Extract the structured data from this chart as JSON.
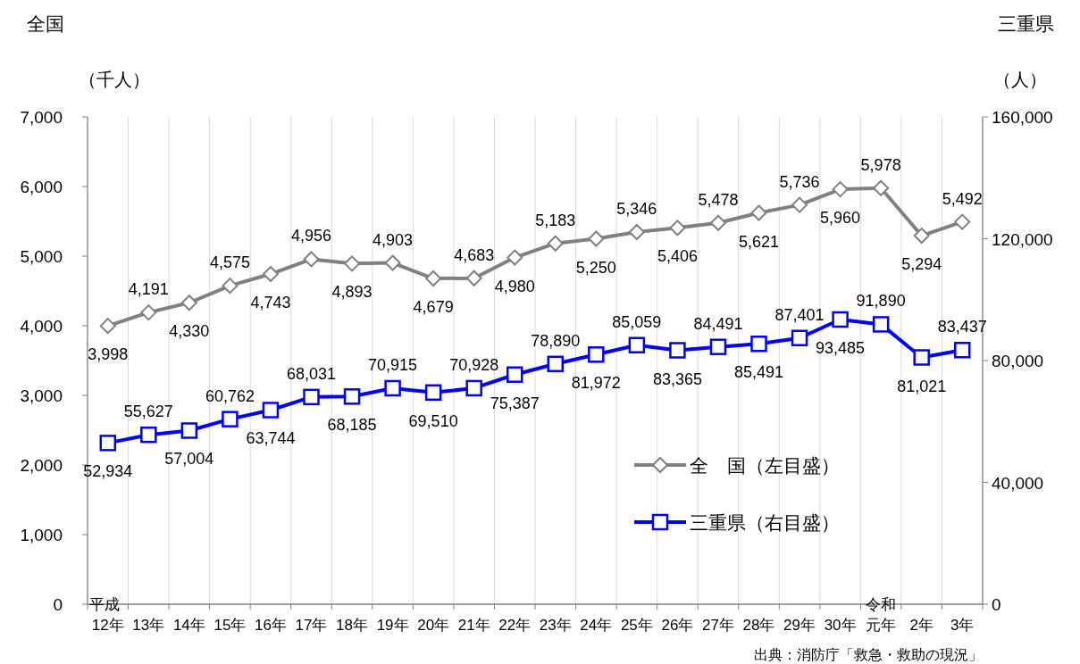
{
  "chart_data": {
    "type": "line",
    "ylabel": "全国",
    "y2label": "三重県",
    "categories": [
      "12年",
      "13年",
      "14年",
      "15年",
      "16年",
      "17年",
      "18年",
      "19年",
      "20年",
      "21年",
      "22年",
      "23年",
      "24年",
      "25年",
      "26年",
      "27年",
      "28年",
      "29年",
      "30年",
      "元年",
      "2年",
      "3年"
    ],
    "series": [
      {
        "name": "全　国（左目盛）",
        "color": "#808080",
        "marker": "diamond",
        "values": [
          3998,
          4191,
          4330,
          4575,
          4743,
          4956,
          4893,
          4903,
          4679,
          4683,
          4980,
          5183,
          5250,
          5346,
          5406,
          5478,
          5621,
          5736,
          5960,
          5978,
          5294,
          5492
        ],
        "value_labels": [
          "3,998",
          "4,191",
          "4,330",
          "4,575",
          "4,743",
          "4,956",
          "4,893",
          "4,903",
          "4,679",
          "4,683",
          "4,980",
          "5,183",
          "5,250",
          "5,346",
          "5,406",
          "5,478",
          "5,621",
          "5,736",
          "5,960",
          "5,978",
          "5,294",
          "5,492"
        ]
      },
      {
        "name": "三重県（右目盛）",
        "color": "#0000ff",
        "marker": "square",
        "axis": "y2",
        "values": [
          52934,
          55627,
          57004,
          60762,
          63744,
          68031,
          68185,
          70915,
          69510,
          70928,
          75387,
          78890,
          81972,
          85059,
          83365,
          84491,
          85491,
          87401,
          93485,
          91890,
          81021,
          83437
        ],
        "value_labels": [
          "52,934",
          "55,627",
          "57,004",
          "60,762",
          "63,744",
          "68,031",
          "68,185",
          "70,915",
          "69,510",
          "70,928",
          "75,387",
          "78,890",
          "81,972",
          "85,059",
          "83,365",
          "84,491",
          "85,491",
          "87,401",
          "93,485",
          "91,890",
          "81,021",
          "83,437"
        ]
      }
    ],
    "ylim": [
      0,
      7000
    ],
    "yticks": [
      0,
      {
        "value": 1000,
        "label": "1,000"
      },
      {
        "value": 2000,
        "label": "2,000"
      },
      {
        "value": 3000,
        "label": "3,000"
      },
      {
        "value": 4000,
        "label": "4,000"
      },
      {
        "value": 5000,
        "label": "5,000"
      },
      {
        "value": 6000,
        "label": "6,000"
      },
      {
        "value": 7000,
        "label": "7,000"
      }
    ],
    "y2lim": [
      0,
      160000
    ],
    "y2ticks": [
      0,
      {
        "value": 40000,
        "label": "40,000"
      },
      {
        "value": 80000,
        "label": "80,000"
      },
      {
        "value": 120000,
        "label": "120,000"
      },
      {
        "value": 160000,
        "label": "160,000"
      }
    ],
    "grid": "x",
    "legend": "bottom right",
    "line_style": "solid",
    "annotations": [
      "（千人）",
      "（人）",
      "平成",
      "令和",
      "出典：消防庁「救急・救助の現況」"
    ]
  }
}
